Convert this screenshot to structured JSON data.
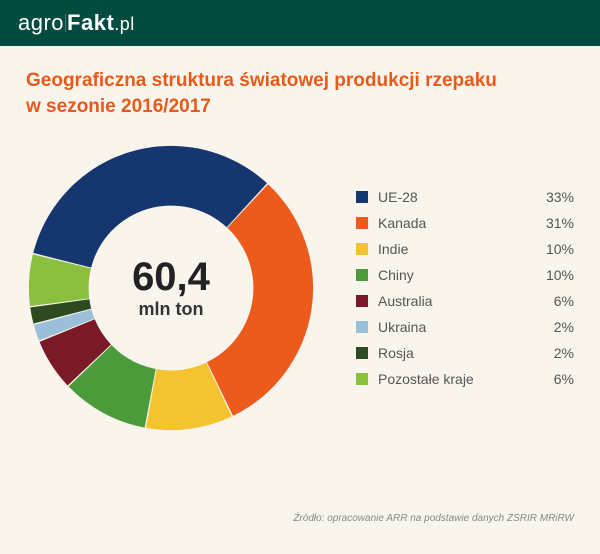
{
  "brand": {
    "part1": "agro",
    "part2": "Fakt",
    "suffix": ".pl"
  },
  "title_line1": "Geograficzna struktura światowej produkcji rzepaku",
  "title_line2": "w sezonie 2016/2017",
  "center": {
    "value": "60,4",
    "unit": "mln ton"
  },
  "chart": {
    "type": "donut",
    "inner_radius_pct": 58,
    "background": "#f9f5ed",
    "slices": [
      {
        "label": "UE-28",
        "pct": 33,
        "color": "#16366f",
        "pct_text": "33%"
      },
      {
        "label": "Kanada",
        "pct": 31,
        "color": "#ec5a1c",
        "pct_text": "31%"
      },
      {
        "label": "Indie",
        "pct": 10,
        "color": "#f4c430",
        "pct_text": "10%"
      },
      {
        "label": "Chiny",
        "pct": 10,
        "color": "#4b9b3b",
        "pct_text": "10%"
      },
      {
        "label": "Australia",
        "pct": 6,
        "color": "#7a1a26",
        "pct_text": "6%"
      },
      {
        "label": "Ukraina",
        "pct": 2,
        "color": "#9bbfd9",
        "pct_text": "2%"
      },
      {
        "label": "Rosja",
        "pct": 2,
        "color": "#2e4a20",
        "pct_text": "2%"
      },
      {
        "label": "Pozostałe kraje",
        "pct": 6,
        "color": "#8bbf3f",
        "pct_text": "6%"
      }
    ],
    "start_angle_deg": -166
  },
  "source": "Źródło: opracowanie ARR na podstawie danych ZSRIR MRiRW"
}
